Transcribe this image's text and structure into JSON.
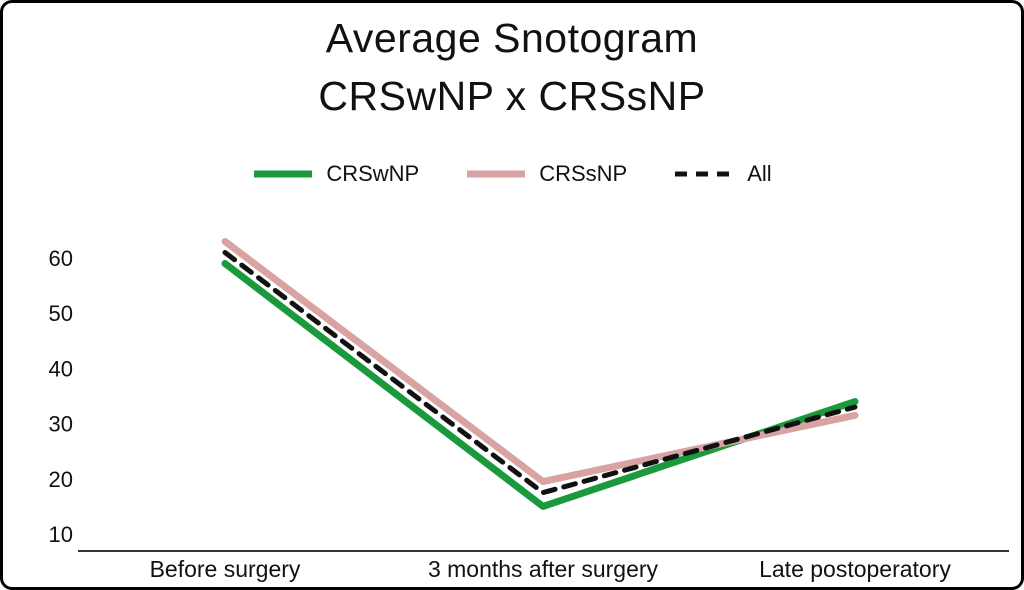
{
  "title": {
    "line1": "Average Snotogram",
    "line2": "CRSwNP x CRSsNP"
  },
  "legend": {
    "items": [
      {
        "label": "CRSwNP",
        "color": "#1a9a3c",
        "dash": null
      },
      {
        "label": "CRSsNP",
        "color": "#d9a3a3",
        "dash": null
      },
      {
        "label": "All",
        "color": "#111111",
        "dash": "12,9"
      }
    ]
  },
  "chart_data": {
    "type": "line",
    "title": "Average Snotogram CRSwNP x CRSsNP",
    "categories": [
      "Before surgery",
      "3 months after surgery",
      "Late postoperatory"
    ],
    "series": [
      {
        "name": "CRSwNP",
        "color": "#1a9a3c",
        "dash": null,
        "width": 7,
        "values": [
          59,
          15,
          34
        ]
      },
      {
        "name": "CRSsNP",
        "color": "#d9a3a3",
        "dash": null,
        "width": 7,
        "values": [
          63,
          19.5,
          31.5
        ]
      },
      {
        "name": "All",
        "color": "#111111",
        "dash": "12,9",
        "width": 5,
        "values": [
          61,
          17.5,
          33
        ]
      }
    ],
    "yticks": [
      10,
      20,
      30,
      40,
      50,
      60
    ],
    "ylim": [
      5,
      67
    ],
    "xlabel": "",
    "ylabel": "",
    "grid": false,
    "legend_position": "top"
  }
}
